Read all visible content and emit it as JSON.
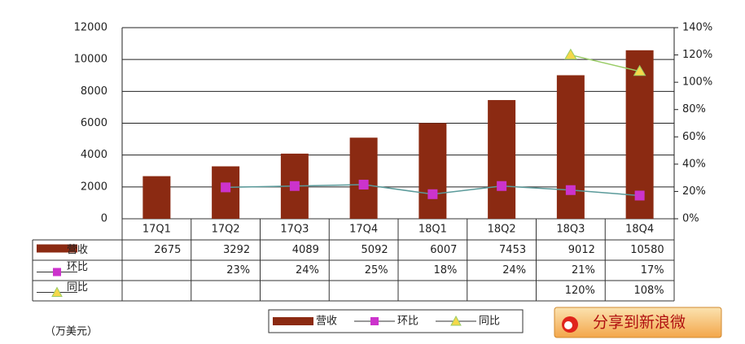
{
  "chart_data": {
    "type": "bar",
    "unit_label": "（万美元）",
    "share_button": "分享到新浪微",
    "categories": [
      "17Q1",
      "17Q2",
      "17Q3",
      "17Q4",
      "18Q1",
      "18Q2",
      "18Q3",
      "18Q4"
    ],
    "series": [
      {
        "name": "营收",
        "type": "bar",
        "color": "#8b2a12",
        "values": [
          2675,
          3292,
          4089,
          5092,
          6007,
          7453,
          9012,
          10580
        ]
      },
      {
        "name": "环比",
        "type": "line",
        "axis": "y2",
        "color": "#5a9a9a",
        "marker_color": "#cc33cc",
        "values": [
          null,
          23,
          24,
          25,
          18,
          24,
          21,
          17
        ],
        "value_labels": [
          null,
          "23%",
          "24%",
          "25%",
          "18%",
          "24%",
          "21%",
          "17%"
        ]
      },
      {
        "name": "同比",
        "type": "line",
        "axis": "y2",
        "color": "#99cc66",
        "marker_color": "#f5d84a",
        "values": [
          null,
          null,
          null,
          null,
          null,
          null,
          120,
          108
        ],
        "value_labels": [
          null,
          null,
          null,
          null,
          null,
          null,
          "120%",
          "108%"
        ]
      }
    ],
    "ylim": [
      0,
      12000
    ],
    "yticks": [
      0,
      2000,
      4000,
      6000,
      8000,
      10000,
      12000
    ],
    "y2lim": [
      0,
      140
    ],
    "y2ticks": [
      {
        "value": 0,
        "label": "0%"
      },
      {
        "value": 20,
        "label": "20%"
      },
      {
        "value": 40,
        "label": "40%"
      },
      {
        "value": 60,
        "label": "60%"
      },
      {
        "value": 80,
        "label": "80%"
      },
      {
        "value": 100,
        "label": "100%"
      },
      {
        "value": 120,
        "label": "120%"
      },
      {
        "value": 140,
        "label": "140%"
      }
    ],
    "grid": true
  }
}
